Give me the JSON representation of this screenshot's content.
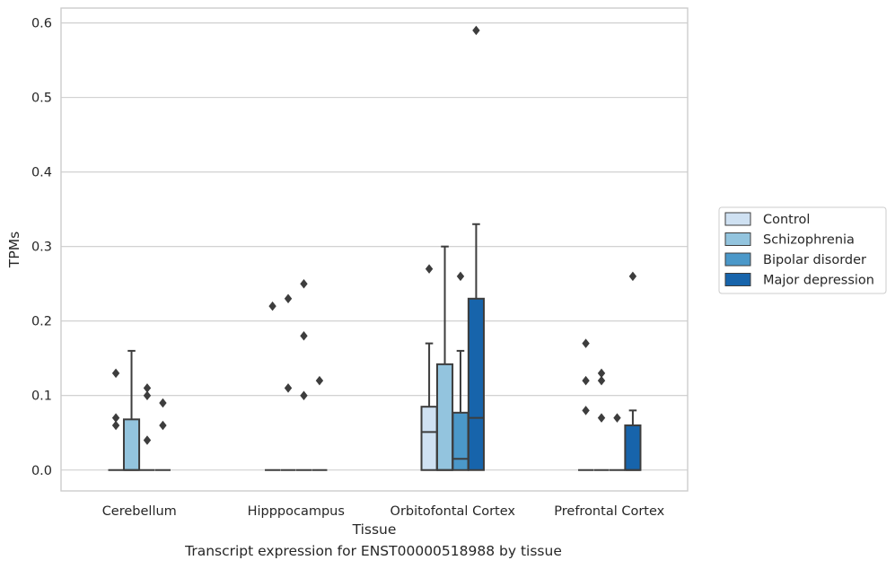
{
  "caption": "Transcript expression for ENST00000518988 by tissue",
  "chart_data": {
    "type": "box",
    "title": "",
    "xlabel": "Tissue",
    "ylabel": "TPMs",
    "ylim": [
      -0.028,
      0.62
    ],
    "yticks": [
      0.0,
      0.1,
      0.2,
      0.3,
      0.4,
      0.5,
      0.6
    ],
    "ytick_labels": [
      "0.0",
      "0.1",
      "0.2",
      "0.3",
      "0.4",
      "0.5",
      "0.6"
    ],
    "grid": true,
    "legend_position": "right",
    "categories": [
      "Cerebellum",
      "Hipppocampus",
      "Orbitofontal Cortex",
      "Prefrontal Cortex"
    ],
    "series": [
      {
        "name": "Control",
        "color": "#cfe1f2",
        "boxes": [
          {
            "q1": 0,
            "median": 0,
            "q3": 0,
            "whislo": 0,
            "whishi": 0,
            "fliers": [
              0.06,
              0.07,
              0.13
            ]
          },
          {
            "q1": 0,
            "median": 0,
            "q3": 0,
            "whislo": 0,
            "whishi": 0,
            "fliers": [
              0.22
            ]
          },
          {
            "q1": 0,
            "median": 0.051,
            "q3": 0.085,
            "whislo": 0,
            "whishi": 0.17,
            "fliers": [
              0.27
            ]
          },
          {
            "q1": 0,
            "median": 0,
            "q3": 0,
            "whislo": 0,
            "whishi": 0,
            "fliers": [
              0.08,
              0.12,
              0.17
            ]
          }
        ]
      },
      {
        "name": "Schizophrenia",
        "color": "#93c4de",
        "boxes": [
          {
            "q1": 0,
            "median": 0,
            "q3": 0.068,
            "whislo": 0,
            "whishi": 0.16,
            "fliers": []
          },
          {
            "q1": 0,
            "median": 0,
            "q3": 0,
            "whislo": 0,
            "whishi": 0,
            "fliers": [
              0.11,
              0.23
            ]
          },
          {
            "q1": 0,
            "median": 0,
            "q3": 0.142,
            "whislo": 0,
            "whishi": 0.3,
            "fliers": []
          },
          {
            "q1": 0,
            "median": 0,
            "q3": 0,
            "whislo": 0,
            "whishi": 0,
            "fliers": [
              0.07,
              0.12,
              0.13
            ]
          }
        ]
      },
      {
        "name": "Bipolar disorder",
        "color": "#4b98c9",
        "boxes": [
          {
            "q1": 0,
            "median": 0,
            "q3": 0,
            "whislo": 0,
            "whishi": 0,
            "fliers": [
              0.04,
              0.1,
              0.11
            ]
          },
          {
            "q1": 0,
            "median": 0,
            "q3": 0,
            "whislo": 0,
            "whishi": 0,
            "fliers": [
              0.1,
              0.18,
              0.25
            ]
          },
          {
            "q1": 0,
            "median": 0.015,
            "q3": 0.077,
            "whislo": 0,
            "whishi": 0.16,
            "fliers": [
              0.26
            ]
          },
          {
            "q1": 0,
            "median": 0,
            "q3": 0,
            "whislo": 0,
            "whishi": 0,
            "fliers": [
              0.07
            ]
          }
        ]
      },
      {
        "name": "Major depression",
        "color": "#1764ab",
        "boxes": [
          {
            "q1": 0,
            "median": 0,
            "q3": 0,
            "whislo": 0,
            "whishi": 0,
            "fliers": [
              0.06,
              0.09
            ]
          },
          {
            "q1": 0,
            "median": 0,
            "q3": 0,
            "whislo": 0,
            "whishi": 0,
            "fliers": [
              0.12
            ]
          },
          {
            "q1": 0,
            "median": 0.07,
            "q3": 0.23,
            "whislo": 0,
            "whishi": 0.33,
            "fliers": [
              0.59
            ]
          },
          {
            "q1": 0,
            "median": 0,
            "q3": 0.06,
            "whislo": 0,
            "whishi": 0.08,
            "fliers": [
              0.26
            ]
          }
        ]
      }
    ]
  }
}
